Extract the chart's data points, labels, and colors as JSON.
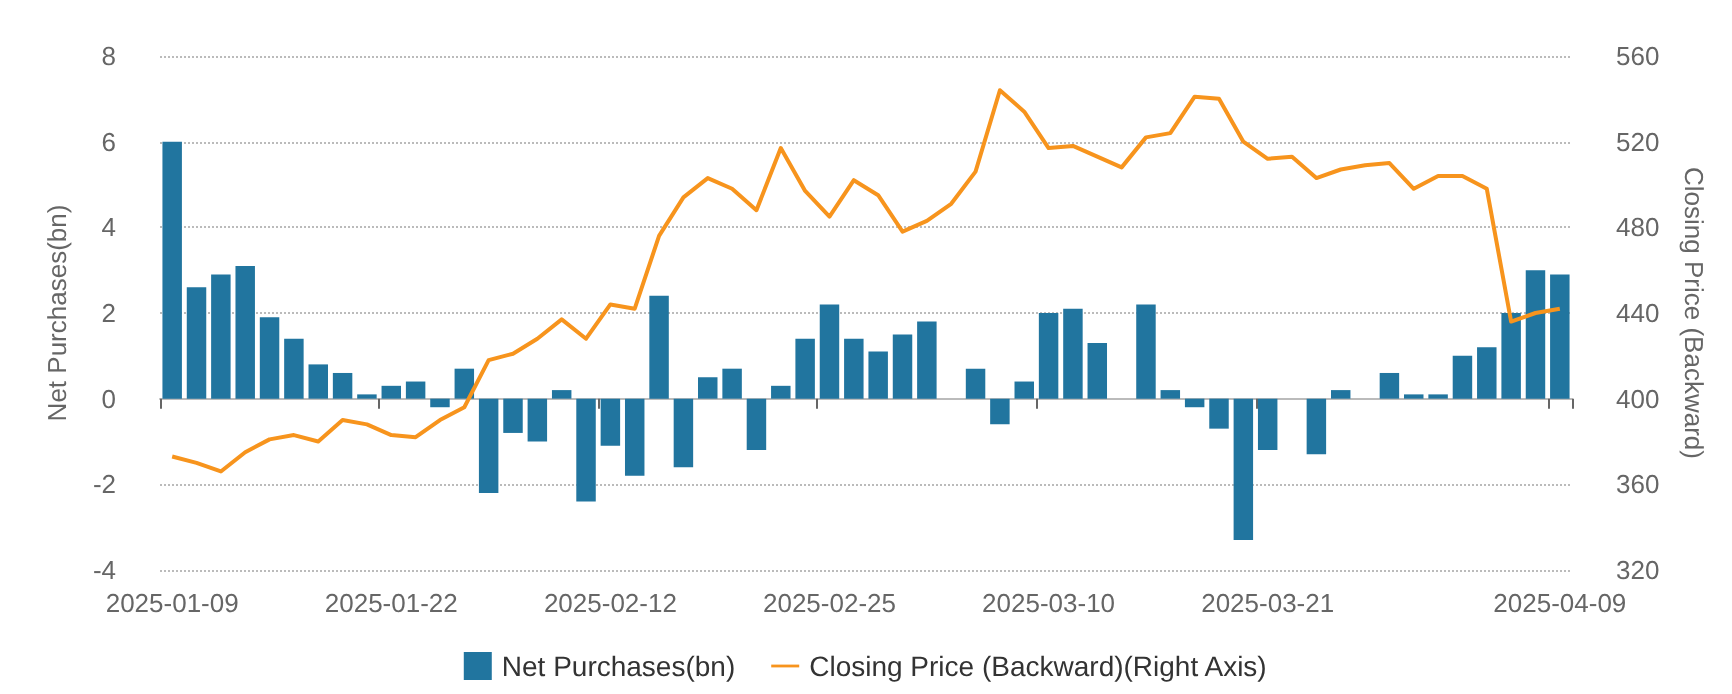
{
  "chart_data": {
    "type": "bar",
    "categories": [
      "2025-01-09",
      null,
      null,
      null,
      null,
      null,
      null,
      null,
      null,
      "2025-01-22",
      null,
      null,
      null,
      null,
      null,
      null,
      null,
      null,
      "2025-02-12",
      null,
      null,
      null,
      null,
      null,
      null,
      null,
      null,
      "2025-02-25",
      null,
      null,
      null,
      null,
      null,
      null,
      null,
      null,
      "2025-03-10",
      null,
      null,
      null,
      null,
      null,
      null,
      null,
      null,
      "2025-03-21",
      null,
      null,
      null,
      null,
      null,
      null,
      null,
      null,
      null,
      null,
      null,
      "2025-04-09"
    ],
    "series": [
      {
        "name": "Net Purchases(bn)",
        "color": "#21759f",
        "values": [
          6.0,
          2.6,
          2.9,
          3.1,
          1.9,
          1.4,
          0.8,
          0.6,
          0.1,
          0.3,
          0.4,
          -0.2,
          0.7,
          -2.2,
          -0.8,
          -1.0,
          0.2,
          -2.4,
          -1.1,
          -1.8,
          2.4,
          -1.6,
          0.5,
          0.7,
          -1.2,
          0.3,
          1.4,
          2.2,
          1.4,
          1.1,
          1.5,
          1.8,
          0,
          0.7,
          -0.6,
          0.4,
          2.0,
          2.1,
          1.3,
          0,
          2.2,
          0.2,
          -0.2,
          -0.7,
          -3.3,
          -1.2,
          0,
          -1.3,
          0.2,
          0,
          0.6,
          0.1,
          0.1,
          1.0,
          1.2,
          2.0,
          3.0,
          2.9
        ]
      },
      {
        "name": "Closing Price (Backward)(Right Axis)",
        "type": "line",
        "axis": "y2",
        "color": "#f7941d",
        "values": [
          373,
          370,
          366,
          375,
          381,
          383,
          380,
          390,
          388,
          383,
          382,
          390,
          396,
          418,
          421,
          428,
          437,
          428,
          444,
          442,
          476,
          494,
          503,
          498,
          488,
          517,
          497,
          485,
          502,
          495,
          478,
          483,
          491,
          506,
          544,
          534,
          517,
          518,
          513,
          508,
          522,
          524,
          541,
          540,
          520,
          512,
          513,
          503,
          507,
          509,
          510,
          498,
          504,
          504,
          498,
          436,
          440,
          442
        ]
      }
    ],
    "ylabel": "Net Purchases(bn)",
    "y2label": "Closing Price (Backward)",
    "ylim": [
      -4,
      8
    ],
    "yticks": [
      -4,
      -2,
      0,
      2,
      4,
      6,
      8
    ],
    "y2lim": [
      320,
      560
    ],
    "y2ticks": [
      320,
      360,
      400,
      440,
      480,
      520,
      560
    ],
    "grid": "y",
    "legend": "bottom",
    "marker": "none",
    "line_style": "solid"
  }
}
